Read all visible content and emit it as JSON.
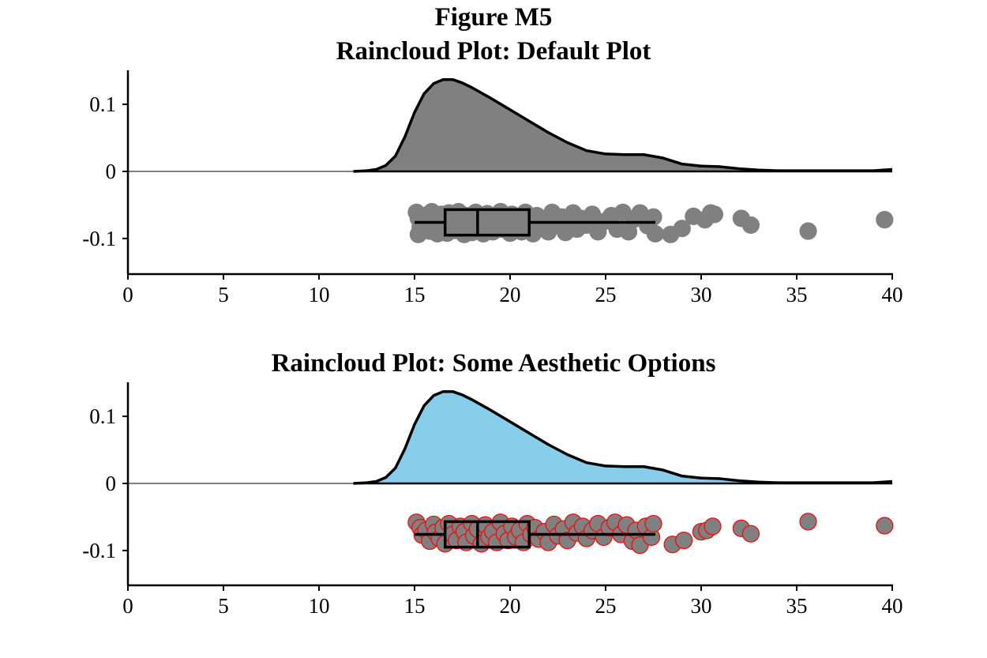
{
  "figure": {
    "label": "Figure M5"
  },
  "chart_data": [
    {
      "type": "raincloud",
      "title": "Raincloud Plot: Default Plot",
      "xlabel": "",
      "ylabel": "",
      "xlim": [
        0,
        40
      ],
      "ylim": [
        -0.15,
        0.15
      ],
      "xticks": [
        "0",
        "5",
        "10",
        "15",
        "20",
        "25",
        "30",
        "35",
        "40"
      ],
      "yticks": [
        "0.1",
        "0",
        "-0.1"
      ],
      "grid": false,
      "colors": {
        "cloud_fill": "#808080",
        "cloud_outline": "#000000",
        "point_fill": "#808080",
        "point_edge": "#808080",
        "box": "#000000"
      },
      "density": {
        "x": [
          11.8,
          12.5,
          13.0,
          13.5,
          14.0,
          14.5,
          15.0,
          15.5,
          16.0,
          16.5,
          17.0,
          17.5,
          18.0,
          19.0,
          20.0,
          21.0,
          22.0,
          23.0,
          24.0,
          25.0,
          26.0,
          27.0,
          28.0,
          29.0,
          30.0,
          31.0,
          32.0,
          33.0,
          34.0,
          35.0,
          36.0,
          37.0,
          38.0,
          39.0,
          40.0
        ],
        "y": [
          0.0,
          0.001,
          0.003,
          0.009,
          0.023,
          0.052,
          0.088,
          0.116,
          0.131,
          0.137,
          0.137,
          0.132,
          0.125,
          0.109,
          0.092,
          0.075,
          0.058,
          0.043,
          0.031,
          0.026,
          0.025,
          0.025,
          0.02,
          0.011,
          0.008,
          0.007,
          0.004,
          0.002,
          0.001,
          0.001,
          0.001,
          0.001,
          0.001,
          0.001,
          0.003
        ]
      },
      "box": {
        "min": 15.0,
        "q1": 16.6,
        "median": 18.3,
        "q3": 21.0,
        "max": 27.6,
        "y_center": -0.076,
        "half_height": 0.019
      },
      "points": [
        [
          15.1,
          -0.061
        ],
        [
          15.2,
          -0.07
        ],
        [
          15.3,
          -0.083
        ],
        [
          15.2,
          -0.094
        ],
        [
          15.5,
          -0.066
        ],
        [
          15.6,
          -0.078
        ],
        [
          15.8,
          -0.089
        ],
        [
          15.9,
          -0.06
        ],
        [
          16.0,
          -0.071
        ],
        [
          16.1,
          -0.085
        ],
        [
          16.2,
          -0.093
        ],
        [
          16.4,
          -0.064
        ],
        [
          16.5,
          -0.079
        ],
        [
          16.7,
          -0.092
        ],
        [
          16.8,
          -0.062
        ],
        [
          17.0,
          -0.074
        ],
        [
          17.1,
          -0.088
        ],
        [
          17.3,
          -0.06
        ],
        [
          17.4,
          -0.083
        ],
        [
          17.6,
          -0.094
        ],
        [
          17.7,
          -0.066
        ],
        [
          17.9,
          -0.078
        ],
        [
          18.0,
          -0.091
        ],
        [
          18.2,
          -0.061
        ],
        [
          18.3,
          -0.085
        ],
        [
          18.5,
          -0.072
        ],
        [
          18.6,
          -0.093
        ],
        [
          18.8,
          -0.063
        ],
        [
          19.0,
          -0.08
        ],
        [
          19.1,
          -0.09
        ],
        [
          19.3,
          -0.068
        ],
        [
          19.5,
          -0.06
        ],
        [
          19.6,
          -0.086
        ],
        [
          19.8,
          -0.075
        ],
        [
          20.0,
          -0.092
        ],
        [
          20.1,
          -0.064
        ],
        [
          20.3,
          -0.082
        ],
        [
          20.5,
          -0.07
        ],
        [
          20.6,
          -0.09
        ],
        [
          20.8,
          -0.061
        ],
        [
          21.0,
          -0.078
        ],
        [
          21.2,
          -0.093
        ],
        [
          21.4,
          -0.066
        ],
        [
          21.6,
          -0.084
        ],
        [
          21.8,
          -0.072
        ],
        [
          22.0,
          -0.09
        ],
        [
          22.2,
          -0.061
        ],
        [
          22.4,
          -0.08
        ],
        [
          22.7,
          -0.068
        ],
        [
          22.9,
          -0.091
        ],
        [
          23.1,
          -0.074
        ],
        [
          23.3,
          -0.062
        ],
        [
          23.5,
          -0.086
        ],
        [
          23.7,
          -0.07
        ],
        [
          24.0,
          -0.08
        ],
        [
          24.3,
          -0.064
        ],
        [
          24.6,
          -0.09
        ],
        [
          25.0,
          -0.074
        ],
        [
          25.3,
          -0.066
        ],
        [
          25.6,
          -0.086
        ],
        [
          25.9,
          -0.061
        ],
        [
          26.2,
          -0.09
        ],
        [
          26.5,
          -0.071
        ],
        [
          26.8,
          -0.062
        ],
        [
          27.2,
          -0.081
        ],
        [
          27.5,
          -0.068
        ],
        [
          27.6,
          -0.093
        ],
        [
          28.4,
          -0.094
        ],
        [
          29.0,
          -0.085
        ],
        [
          29.6,
          -0.067
        ],
        [
          30.2,
          -0.072
        ],
        [
          30.5,
          -0.062
        ],
        [
          30.7,
          -0.064
        ],
        [
          32.1,
          -0.07
        ],
        [
          32.6,
          -0.08
        ],
        [
          35.6,
          -0.089
        ],
        [
          39.6,
          -0.072
        ]
      ]
    },
    {
      "type": "raincloud",
      "title": "Raincloud Plot: Some Aesthetic Options",
      "xlabel": "",
      "ylabel": "",
      "xlim": [
        0,
        40
      ],
      "ylim": [
        -0.15,
        0.15
      ],
      "xticks": [
        "0",
        "5",
        "10",
        "15",
        "20",
        "25",
        "30",
        "35",
        "40"
      ],
      "yticks": [
        "0.1",
        "0",
        "-0.1"
      ],
      "grid": false,
      "colors": {
        "cloud_fill": "#87ceeb",
        "cloud_outline": "#000000",
        "point_fill": "#808080",
        "point_edge": "#ff0000",
        "box": "#000000"
      },
      "density": {
        "x": [
          11.8,
          12.5,
          13.0,
          13.5,
          14.0,
          14.5,
          15.0,
          15.5,
          16.0,
          16.5,
          17.0,
          17.5,
          18.0,
          19.0,
          20.0,
          21.0,
          22.0,
          23.0,
          24.0,
          25.0,
          26.0,
          27.0,
          28.0,
          29.0,
          30.0,
          31.0,
          32.0,
          33.0,
          34.0,
          35.0,
          36.0,
          37.0,
          38.0,
          39.0,
          40.0
        ],
        "y": [
          0.0,
          0.001,
          0.003,
          0.009,
          0.023,
          0.052,
          0.088,
          0.116,
          0.131,
          0.137,
          0.137,
          0.132,
          0.125,
          0.109,
          0.092,
          0.075,
          0.058,
          0.043,
          0.031,
          0.026,
          0.025,
          0.025,
          0.02,
          0.011,
          0.008,
          0.007,
          0.004,
          0.002,
          0.001,
          0.001,
          0.001,
          0.001,
          0.001,
          0.001,
          0.003
        ]
      },
      "box": {
        "min": 15.0,
        "q1": 16.6,
        "median": 18.3,
        "q3": 21.0,
        "max": 27.6,
        "y_center": -0.076,
        "half_height": 0.019
      },
      "points": [
        [
          15.1,
          -0.058
        ],
        [
          15.3,
          -0.066
        ],
        [
          15.4,
          -0.077
        ],
        [
          15.6,
          -0.07
        ],
        [
          15.8,
          -0.086
        ],
        [
          16.0,
          -0.061
        ],
        [
          16.1,
          -0.073
        ],
        [
          16.3,
          -0.082
        ],
        [
          16.5,
          -0.066
        ],
        [
          16.6,
          -0.09
        ],
        [
          16.8,
          -0.06
        ],
        [
          17.0,
          -0.076
        ],
        [
          17.2,
          -0.085
        ],
        [
          17.4,
          -0.064
        ],
        [
          17.6,
          -0.072
        ],
        [
          17.7,
          -0.088
        ],
        [
          18.0,
          -0.06
        ],
        [
          18.1,
          -0.078
        ],
        [
          18.3,
          -0.068
        ],
        [
          18.5,
          -0.09
        ],
        [
          18.7,
          -0.062
        ],
        [
          18.9,
          -0.08
        ],
        [
          19.1,
          -0.072
        ],
        [
          19.3,
          -0.088
        ],
        [
          19.5,
          -0.058
        ],
        [
          19.7,
          -0.075
        ],
        [
          19.9,
          -0.085
        ],
        [
          20.1,
          -0.064
        ],
        [
          20.3,
          -0.08
        ],
        [
          20.5,
          -0.07
        ],
        [
          20.7,
          -0.088
        ],
        [
          20.9,
          -0.06
        ],
        [
          21.1,
          -0.076
        ],
        [
          21.3,
          -0.066
        ],
        [
          21.5,
          -0.083
        ],
        [
          21.8,
          -0.072
        ],
        [
          22.0,
          -0.088
        ],
        [
          22.3,
          -0.061
        ],
        [
          22.5,
          -0.078
        ],
        [
          22.8,
          -0.068
        ],
        [
          23.0,
          -0.085
        ],
        [
          23.3,
          -0.058
        ],
        [
          23.5,
          -0.074
        ],
        [
          23.8,
          -0.064
        ],
        [
          24.0,
          -0.082
        ],
        [
          24.3,
          -0.07
        ],
        [
          24.6,
          -0.06
        ],
        [
          24.9,
          -0.08
        ],
        [
          25.2,
          -0.066
        ],
        [
          25.5,
          -0.058
        ],
        [
          25.8,
          -0.076
        ],
        [
          26.1,
          -0.062
        ],
        [
          26.4,
          -0.086
        ],
        [
          26.6,
          -0.07
        ],
        [
          26.8,
          -0.092
        ],
        [
          27.1,
          -0.064
        ],
        [
          27.4,
          -0.08
        ],
        [
          27.5,
          -0.06
        ],
        [
          28.5,
          -0.091
        ],
        [
          29.1,
          -0.085
        ],
        [
          30.0,
          -0.072
        ],
        [
          30.3,
          -0.07
        ],
        [
          30.6,
          -0.064
        ],
        [
          32.1,
          -0.067
        ],
        [
          32.6,
          -0.075
        ],
        [
          35.6,
          -0.057
        ],
        [
          39.6,
          -0.063
        ]
      ]
    }
  ]
}
